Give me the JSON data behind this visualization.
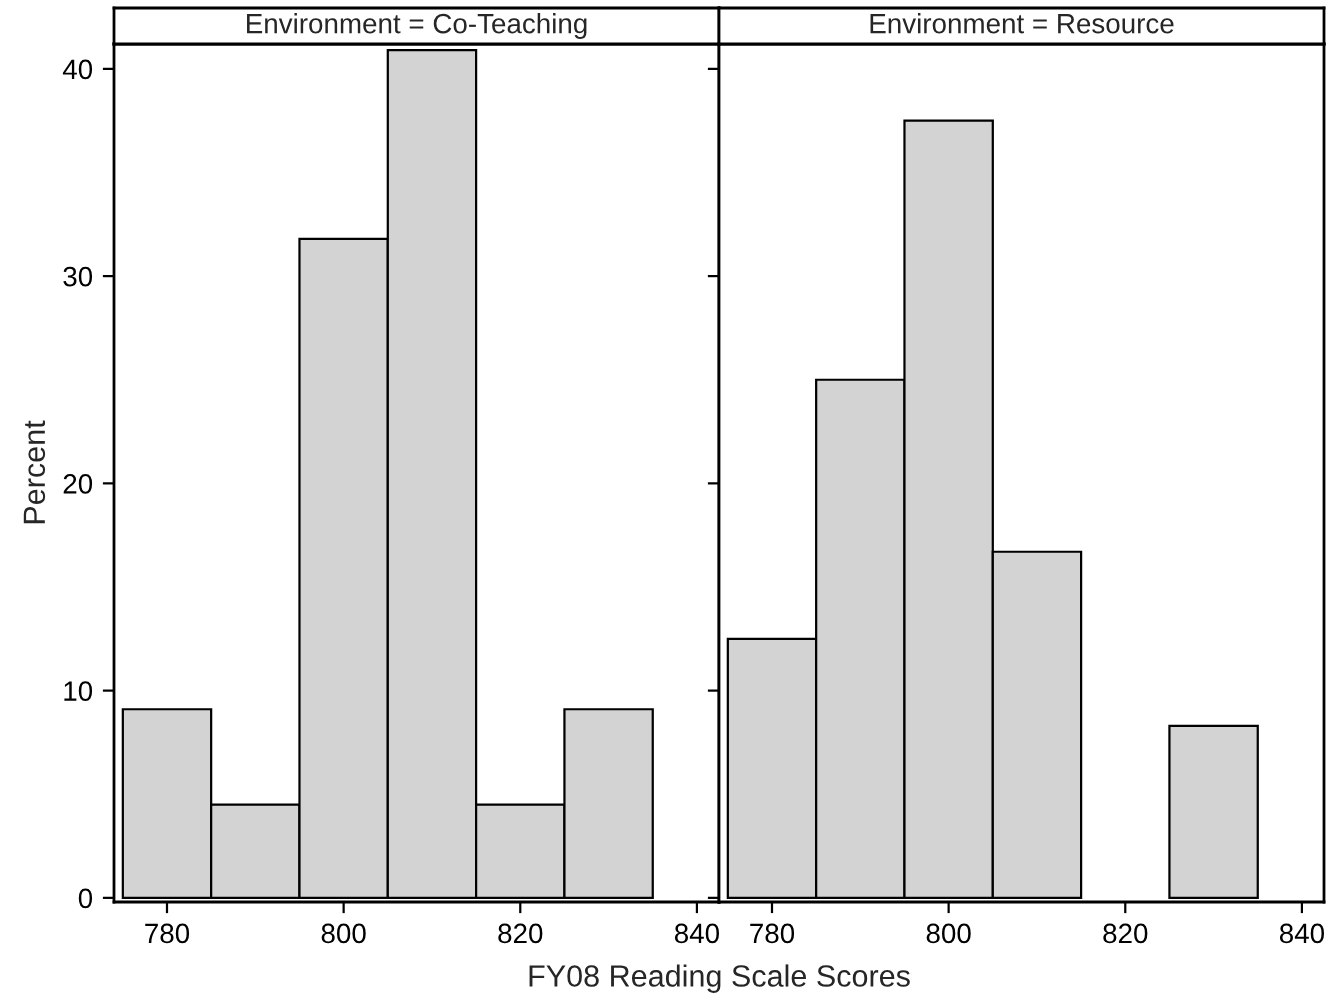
{
  "chart_data": [
    {
      "type": "histogram",
      "title": "Environment = Co-Teaching",
      "xlabel": "FY08 Reading Scale Scores",
      "ylabel": "Percent",
      "bins": [
        775,
        785,
        795,
        805,
        815,
        825,
        835
      ],
      "values": [
        9.1,
        4.5,
        31.8,
        40.9,
        4.5,
        9.1
      ],
      "color": "#d3d3d3",
      "xlim": [
        774,
        842.5
      ],
      "xticks": [
        780,
        800,
        820,
        840
      ],
      "ylim": [
        -0.2,
        41.2
      ],
      "yticks": [
        0,
        10,
        20,
        30,
        40
      ],
      "grid": false,
      "legend": false
    },
    {
      "type": "histogram",
      "title": "Environment = Resource",
      "bins": [
        775,
        785,
        795,
        805,
        815,
        825,
        835
      ],
      "values": [
        12.5,
        25,
        37.5,
        16.7,
        0,
        8.3
      ],
      "color": "#d3d3d3",
      "xlim": [
        774,
        842.5
      ],
      "xticks": [
        780,
        800,
        820,
        840
      ],
      "ylim": [
        -0.2,
        41.2
      ],
      "yticks": [
        0,
        10,
        20,
        30,
        40
      ],
      "tick_labels": "x",
      "grid": false,
      "legend": false
    }
  ]
}
